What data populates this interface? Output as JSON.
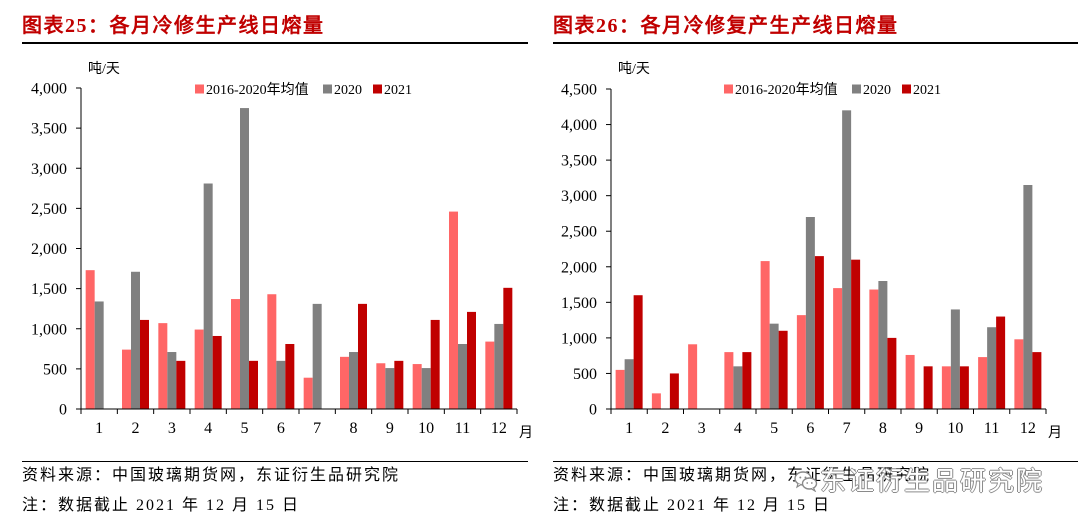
{
  "chart_data": [
    {
      "type": "bar",
      "title": "图表25：各月冷修生产线日熔量",
      "ylabel": "吨/天",
      "xlabel": "月",
      "categories": [
        "1",
        "2",
        "3",
        "4",
        "5",
        "6",
        "7",
        "8",
        "9",
        "10",
        "11",
        "12"
      ],
      "ylim": [
        0,
        4000
      ],
      "yticks": [
        "0",
        "500",
        "1,000",
        "1,500",
        "2,000",
        "2,500",
        "3,000",
        "3,500",
        "4,000"
      ],
      "grid": false,
      "legend": "top",
      "series": [
        {
          "name": "2016-2020年均值",
          "color": "#ff6666",
          "values": [
            1730,
            740,
            1070,
            990,
            1370,
            1430,
            390,
            650,
            570,
            560,
            2460,
            840
          ]
        },
        {
          "name": "2020",
          "color": "#808080",
          "values": [
            1340,
            1710,
            710,
            2810,
            3750,
            600,
            1310,
            710,
            510,
            510,
            810,
            1060
          ]
        },
        {
          "name": "2021",
          "color": "#c00000",
          "values": [
            0,
            1110,
            600,
            910,
            600,
            810,
            0,
            1310,
            600,
            1110,
            1210,
            1510
          ]
        }
      ]
    },
    {
      "type": "bar",
      "title": "图表26：各月冷修复产生产线日熔量",
      "ylabel": "吨/天",
      "xlabel": "月",
      "categories": [
        "1",
        "2",
        "3",
        "4",
        "5",
        "6",
        "7",
        "8",
        "9",
        "10",
        "11",
        "12"
      ],
      "ylim": [
        0,
        4500
      ],
      "yticks": [
        "0",
        "500",
        "1,000",
        "1,500",
        "2,000",
        "2,500",
        "3,000",
        "3,500",
        "4,000",
        "4,500"
      ],
      "grid": false,
      "legend": "top",
      "series": [
        {
          "name": "2016-2020年均值",
          "color": "#ff6666",
          "values": [
            550,
            220,
            910,
            800,
            2080,
            1320,
            1700,
            1680,
            760,
            600,
            730,
            980
          ]
        },
        {
          "name": "2020",
          "color": "#808080",
          "values": [
            700,
            0,
            0,
            600,
            1200,
            2700,
            4200,
            1800,
            0,
            1400,
            1150,
            3150
          ]
        },
        {
          "name": "2021",
          "color": "#c00000",
          "values": [
            1600,
            500,
            0,
            800,
            1100,
            2150,
            2100,
            1000,
            600,
            600,
            1300,
            800
          ]
        }
      ]
    }
  ],
  "panels": [
    {
      "source": "资料来源：中国玻璃期货网，东证衍生品研究院",
      "note": "注：数据截止 2021 年 12 月 15 日"
    },
    {
      "source": "资料来源：中国玻璃期货网，东证衍生品研究院",
      "note": "注：数据截止 2021 年 12 月 15 日"
    }
  ],
  "watermark": {
    "text": "东证衍生品研究院",
    "icon": "wechat-icon"
  },
  "colors": {
    "title": "#c00000",
    "watermark_outline": "#8a8a8a"
  }
}
